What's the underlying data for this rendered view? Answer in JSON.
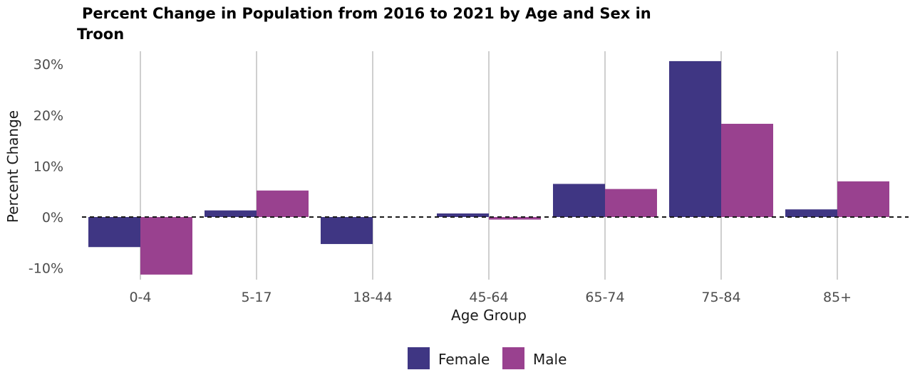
{
  "chart_data": {
    "type": "bar",
    "title_line1": "Percent Change in Population from 2016 to 2021 by Age and Sex in",
    "title_line2": "Troon",
    "xlabel": "Age Group",
    "ylabel": "Percent Change",
    "categories": [
      "0-4",
      "5-17",
      "18-44",
      "45-64",
      "65-74",
      "75-84",
      "85+"
    ],
    "series": [
      {
        "name": "Female",
        "color": "#3f3683",
        "values": [
          -5.9,
          1.3,
          -5.3,
          0.7,
          6.5,
          30.6,
          1.5
        ]
      },
      {
        "name": "Male",
        "color": "#99418f",
        "values": [
          -11.3,
          5.2,
          null,
          -0.5,
          5.5,
          18.3,
          7.0
        ]
      }
    ],
    "ylim": [
      -12,
      32
    ],
    "yticks": [
      -10,
      0,
      10,
      20,
      30
    ],
    "ytick_labels": [
      "-10%",
      "0%",
      "10%",
      "20%",
      "30%"
    ],
    "reference_line": 0,
    "grid": "vertical",
    "legend_position": "bottom"
  }
}
